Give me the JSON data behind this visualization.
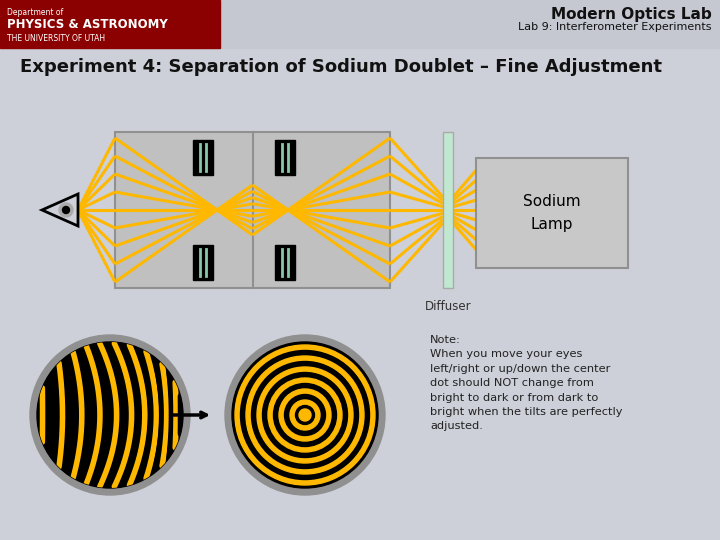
{
  "title": "Modern Optics Lab",
  "subtitle": "Lab 9: Interferometer Experiments",
  "experiment_title": "Experiment 4: Separation of Sodium Doublet – Fine Adjustment",
  "sodium_lamp_label": "Sodium\nLamp",
  "diffuser_label": "Diffuser",
  "note_text": "Note:\nWhen you move your eyes\nleft/right or up/down the center\ndot should NOT change from\nbright to dark or from dark to\nbright when the tilts are perfectly\nadjusted.",
  "bg_color": "#cdd0d8",
  "header_bg": "#c5c8d0",
  "red_box_color": "#8B0000",
  "yellow": "#FFB800",
  "teal": "#88C8A8",
  "gray_box": "#c0c0c0",
  "gray_border": "#909090",
  "lamp_gray": "#c8c8c8",
  "diffuser_color": "#c0e8d0"
}
